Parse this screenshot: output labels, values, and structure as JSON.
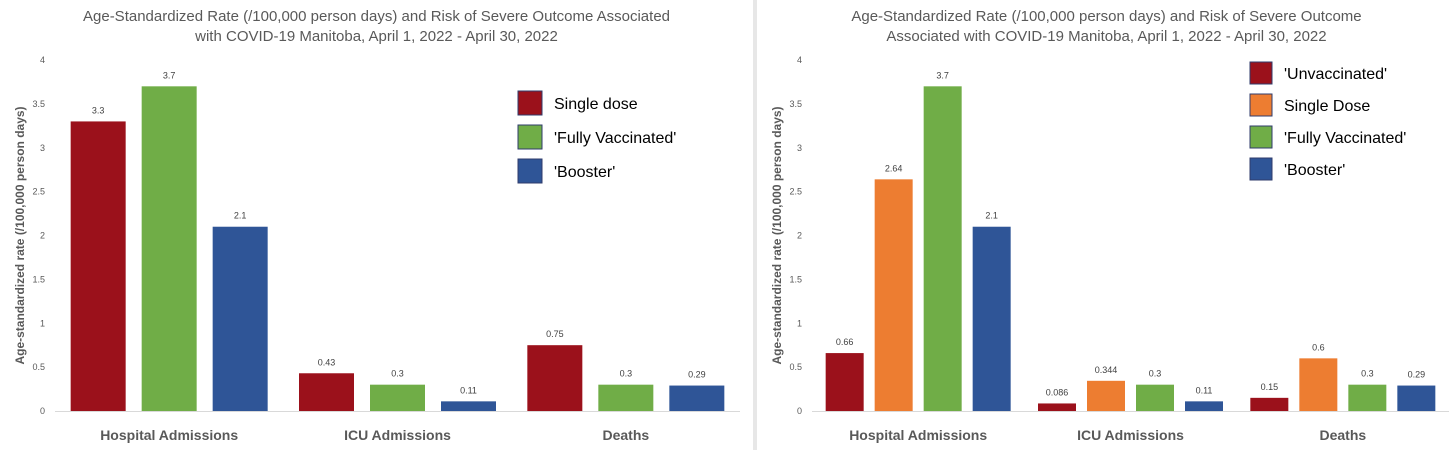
{
  "charts": [
    {
      "title": "Age-Standardized Rate (/100,000 person days) and Risk of Severe Outcome Associated\nwith COVID-19 Manitoba, April 1, 2022 - April 30, 2022"
    },
    {
      "title": "Age-Standardized Rate (/100,000 person days) and Risk of Severe Outcome\nAssociated with COVID-19 Manitoba, April 1, 2022 - April 30, 2022"
    }
  ],
  "colors": {
    "unvaccinated": "#9b111b",
    "single_dose": "#9b111b",
    "single_dose_right": "#ed7d31",
    "fully_vaccinated": "#70ad47",
    "booster": "#2f5597",
    "text": "#595959",
    "axis": "#d9d9d9"
  },
  "chart_data": [
    {
      "type": "bar",
      "title": "Age-Standardized Rate (/100,000 person days) and Risk of Severe Outcome Associated with COVID-19 Manitoba, April 1, 2022 - April 30, 2022",
      "ylabel": "Age-standardized rate (/100,000 person days)",
      "xlabel": "",
      "categories": [
        "Hospital Admissions",
        "ICU Admissions",
        "Deaths"
      ],
      "ylim": [
        0,
        4
      ],
      "yticks": [
        "0",
        "0.5",
        "1",
        "1.5",
        "2",
        "2.5",
        "3",
        "3.5",
        "4"
      ],
      "grid": false,
      "legend_position": "top-right",
      "series": [
        {
          "name": "Single dose",
          "color": "#9b111b",
          "values": [
            3.3,
            0.43,
            0.75
          ],
          "labels": [
            "3.3",
            "0.43",
            "0.75"
          ]
        },
        {
          "name": "'Fully Vaccinated'",
          "color": "#70ad47",
          "values": [
            3.7,
            0.3,
            0.3
          ],
          "labels": [
            "3.7",
            "0.3",
            "0.3"
          ]
        },
        {
          "name": "'Booster'",
          "color": "#2f5597",
          "values": [
            2.1,
            0.11,
            0.29
          ],
          "labels": [
            "2.1",
            "0.11",
            "0.29"
          ]
        }
      ]
    },
    {
      "type": "bar",
      "title": "Age-Standardized Rate (/100,000 person days) and Risk of Severe Outcome Associated with COVID-19 Manitoba, April 1, 2022 - April 30, 2022",
      "ylabel": "Age-standardized rate (/100,000 person days)",
      "xlabel": "",
      "categories": [
        "Hospital Admissions",
        "ICU Admissions",
        "Deaths"
      ],
      "ylim": [
        0,
        4
      ],
      "yticks": [
        "0",
        "0.5",
        "1",
        "1.5",
        "2",
        "2.5",
        "3",
        "3.5",
        "4"
      ],
      "grid": false,
      "legend_position": "top-right",
      "series": [
        {
          "name": "'Unvaccinated'",
          "color": "#9b111b",
          "values": [
            0.66,
            0.086,
            0.15
          ],
          "labels": [
            "0.66",
            "0.086",
            "0.15"
          ]
        },
        {
          "name": "Single Dose",
          "color": "#ed7d31",
          "values": [
            2.64,
            0.344,
            0.6
          ],
          "labels": [
            "2.64",
            "0.344",
            "0.6"
          ]
        },
        {
          "name": "'Fully Vaccinated'",
          "color": "#70ad47",
          "values": [
            3.7,
            0.3,
            0.3
          ],
          "labels": [
            "3.7",
            "0.3",
            "0.3"
          ]
        },
        {
          "name": "'Booster'",
          "color": "#2f5597",
          "values": [
            2.1,
            0.11,
            0.29
          ],
          "labels": [
            "2.1",
            "0.11",
            "0.29"
          ]
        }
      ]
    }
  ]
}
